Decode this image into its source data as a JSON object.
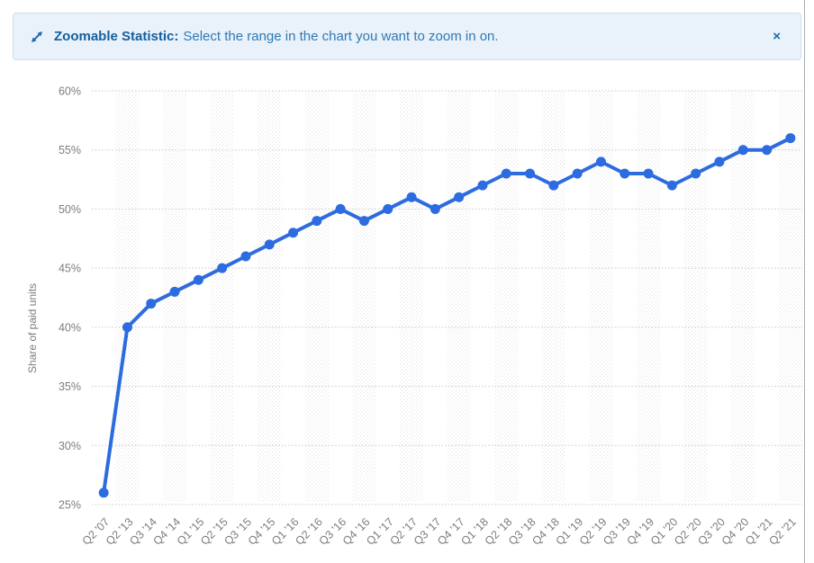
{
  "banner": {
    "title": "Zoomable Statistic:",
    "message": "Select the range in the chart you want to zoom in on.",
    "close_label": "×",
    "bg_color": "#e9f1fa",
    "border_color": "#cddff0",
    "title_color": "#14609f",
    "message_color": "#2f7ab5"
  },
  "chart_data": {
    "type": "line",
    "title": "",
    "xlabel": "",
    "ylabel": "Share of paid units",
    "ylim": [
      25,
      60
    ],
    "yticks": [
      25,
      30,
      35,
      40,
      45,
      50,
      55,
      60
    ],
    "ytick_suffix": "%",
    "grid": "horizontal-dotted",
    "plot_bands": "alternating-stippled-columns",
    "legend": "none",
    "line_color": "#2c6ce0",
    "categories": [
      "Q2 '07",
      "Q2 '13",
      "Q3 '14",
      "Q4 '14",
      "Q1 '15",
      "Q2 '15",
      "Q3 '15",
      "Q4 '15",
      "Q1 '16",
      "Q2 '16",
      "Q3 '16",
      "Q4 '16",
      "Q1 '17",
      "Q2 '17",
      "Q3 '17",
      "Q4 '17",
      "Q1 '18",
      "Q2 '18",
      "Q3 '18",
      "Q4 '18",
      "Q1 '19",
      "Q2 '19",
      "Q3 '19",
      "Q4 '19",
      "Q1 '20",
      "Q2 '20",
      "Q3 '20",
      "Q4 '20",
      "Q1 '21",
      "Q2 '21"
    ],
    "series": [
      {
        "name": "Share of paid units",
        "values": [
          26,
          40,
          42,
          43,
          44,
          45,
          46,
          47,
          48,
          49,
          50,
          49,
          50,
          51,
          50,
          51,
          52,
          53,
          53,
          52,
          53,
          54,
          53,
          53,
          52,
          53,
          54,
          55,
          55,
          56
        ]
      }
    ]
  }
}
